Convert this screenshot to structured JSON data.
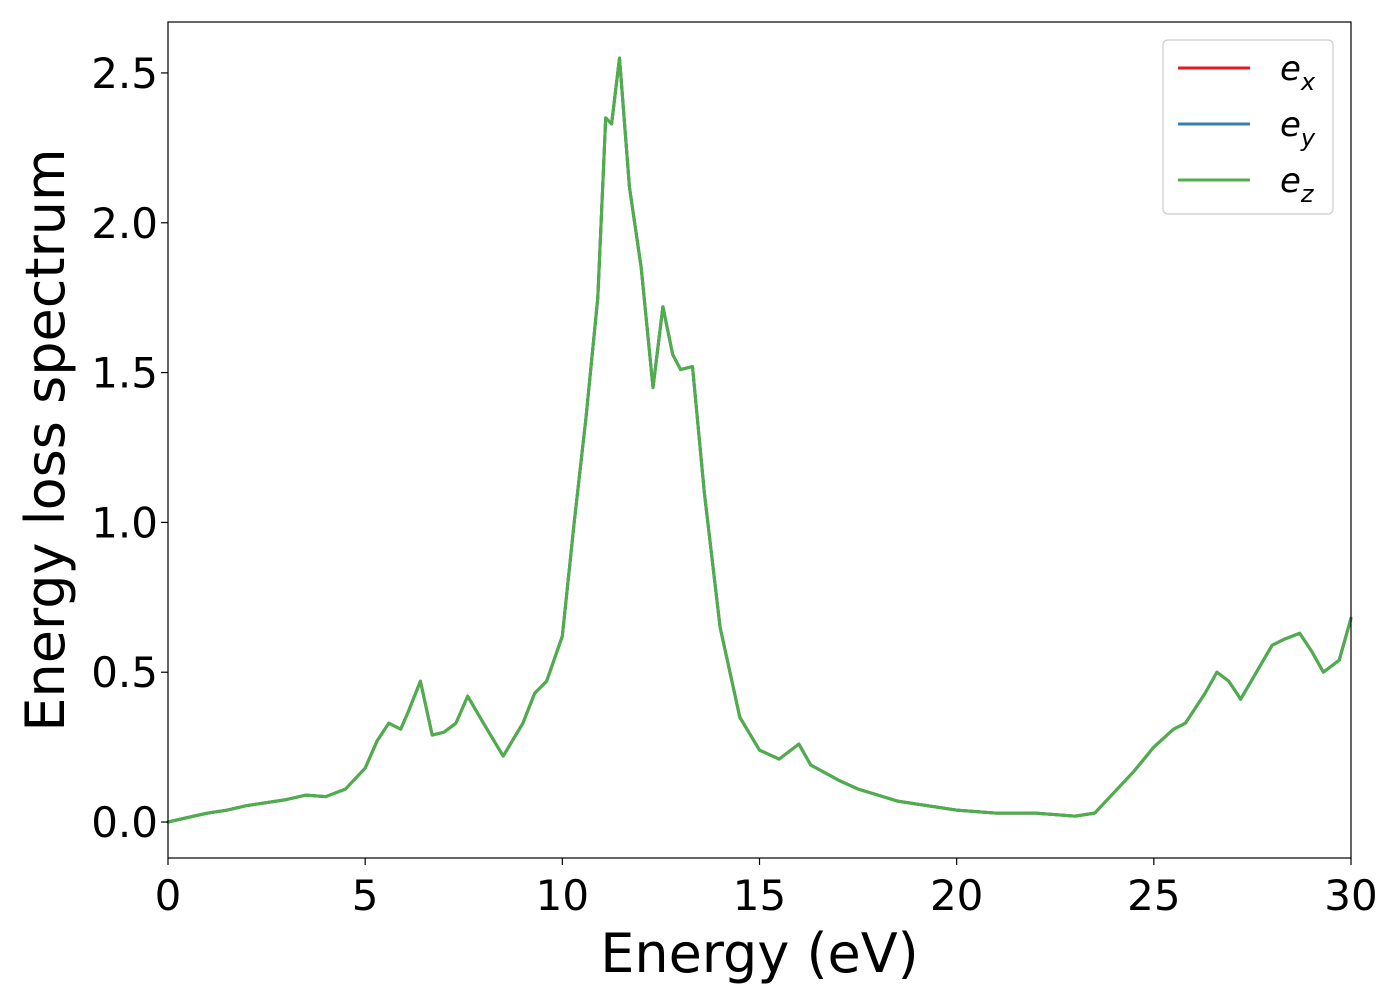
{
  "chart_data": {
    "type": "line",
    "title": "",
    "xlabel": "Energy (eV)",
    "ylabel": "Energy loss spectrum",
    "xlim": [
      0,
      30
    ],
    "ylim": [
      -0.12,
      2.67
    ],
    "xticks": [
      0,
      5,
      10,
      15,
      20,
      25,
      30
    ],
    "xtick_labels": [
      "0",
      "5",
      "10",
      "15",
      "20",
      "25",
      "30"
    ],
    "yticks": [
      0.0,
      0.5,
      1.0,
      1.5,
      2.0,
      2.5
    ],
    "ytick_labels": [
      "0.0",
      "0.5",
      "1.0",
      "1.5",
      "2.0",
      "2.5"
    ],
    "grid": false,
    "legend_position": "top-right",
    "x": [
      0,
      0.5,
      1,
      1.5,
      2,
      2.5,
      3,
      3.5,
      4,
      4.5,
      5,
      5.3,
      5.6,
      5.9,
      6.1,
      6.4,
      6.7,
      7.0,
      7.3,
      7.6,
      8.0,
      8.5,
      9.0,
      9.3,
      9.6,
      10.0,
      10.3,
      10.6,
      10.9,
      11.1,
      11.25,
      11.45,
      11.7,
      12.0,
      12.3,
      12.55,
      12.8,
      13.0,
      13.3,
      13.6,
      14.0,
      14.5,
      15.0,
      15.5,
      16.0,
      16.3,
      17.0,
      17.5,
      18.0,
      18.5,
      19.0,
      19.5,
      20.0,
      21.0,
      22.0,
      23.0,
      23.5,
      24.0,
      24.5,
      25.0,
      25.5,
      25.8,
      26.3,
      26.6,
      26.9,
      27.2,
      27.6,
      28.0,
      28.3,
      28.7,
      29.0,
      29.3,
      29.7,
      30.0
    ],
    "series": [
      {
        "name": "e_x",
        "color": "#e41a1c",
        "values": [
          0.0,
          0.015,
          0.03,
          0.04,
          0.055,
          0.065,
          0.075,
          0.09,
          0.085,
          0.11,
          0.18,
          0.27,
          0.33,
          0.31,
          0.37,
          0.47,
          0.29,
          0.3,
          0.33,
          0.42,
          0.33,
          0.22,
          0.33,
          0.43,
          0.47,
          0.62,
          1.0,
          1.35,
          1.75,
          2.35,
          2.33,
          2.55,
          2.12,
          1.85,
          1.45,
          1.72,
          1.56,
          1.51,
          1.52,
          1.1,
          0.65,
          0.35,
          0.24,
          0.21,
          0.26,
          0.19,
          0.14,
          0.11,
          0.09,
          0.07,
          0.06,
          0.05,
          0.04,
          0.03,
          0.03,
          0.02,
          0.03,
          0.1,
          0.17,
          0.25,
          0.31,
          0.33,
          0.43,
          0.5,
          0.47,
          0.41,
          0.5,
          0.59,
          0.61,
          0.63,
          0.57,
          0.5,
          0.54,
          0.68
        ]
      },
      {
        "name": "e_y",
        "color": "#377eb8",
        "values": [
          0.0,
          0.015,
          0.03,
          0.04,
          0.055,
          0.065,
          0.075,
          0.09,
          0.085,
          0.11,
          0.18,
          0.27,
          0.33,
          0.31,
          0.37,
          0.47,
          0.29,
          0.3,
          0.33,
          0.42,
          0.33,
          0.22,
          0.33,
          0.43,
          0.47,
          0.62,
          1.0,
          1.35,
          1.75,
          2.35,
          2.33,
          2.55,
          2.12,
          1.85,
          1.45,
          1.72,
          1.56,
          1.51,
          1.52,
          1.1,
          0.65,
          0.35,
          0.24,
          0.21,
          0.26,
          0.19,
          0.14,
          0.11,
          0.09,
          0.07,
          0.06,
          0.05,
          0.04,
          0.03,
          0.03,
          0.02,
          0.03,
          0.1,
          0.17,
          0.25,
          0.31,
          0.33,
          0.43,
          0.5,
          0.47,
          0.41,
          0.5,
          0.59,
          0.61,
          0.63,
          0.57,
          0.5,
          0.54,
          0.68
        ]
      },
      {
        "name": "e_z",
        "color": "#4daf4a",
        "values": [
          0.0,
          0.015,
          0.03,
          0.04,
          0.055,
          0.065,
          0.075,
          0.09,
          0.085,
          0.11,
          0.18,
          0.27,
          0.33,
          0.31,
          0.37,
          0.47,
          0.29,
          0.3,
          0.33,
          0.42,
          0.33,
          0.22,
          0.33,
          0.43,
          0.47,
          0.62,
          1.0,
          1.35,
          1.75,
          2.35,
          2.33,
          2.55,
          2.12,
          1.85,
          1.45,
          1.72,
          1.56,
          1.51,
          1.52,
          1.1,
          0.65,
          0.35,
          0.24,
          0.21,
          0.26,
          0.19,
          0.14,
          0.11,
          0.09,
          0.07,
          0.06,
          0.05,
          0.04,
          0.03,
          0.03,
          0.02,
          0.03,
          0.1,
          0.17,
          0.25,
          0.31,
          0.33,
          0.43,
          0.5,
          0.47,
          0.41,
          0.5,
          0.59,
          0.61,
          0.63,
          0.57,
          0.5,
          0.54,
          0.68
        ]
      }
    ],
    "legend": [
      {
        "base": "e",
        "sub": "x"
      },
      {
        "base": "e",
        "sub": "y"
      },
      {
        "base": "e",
        "sub": "z"
      }
    ]
  }
}
